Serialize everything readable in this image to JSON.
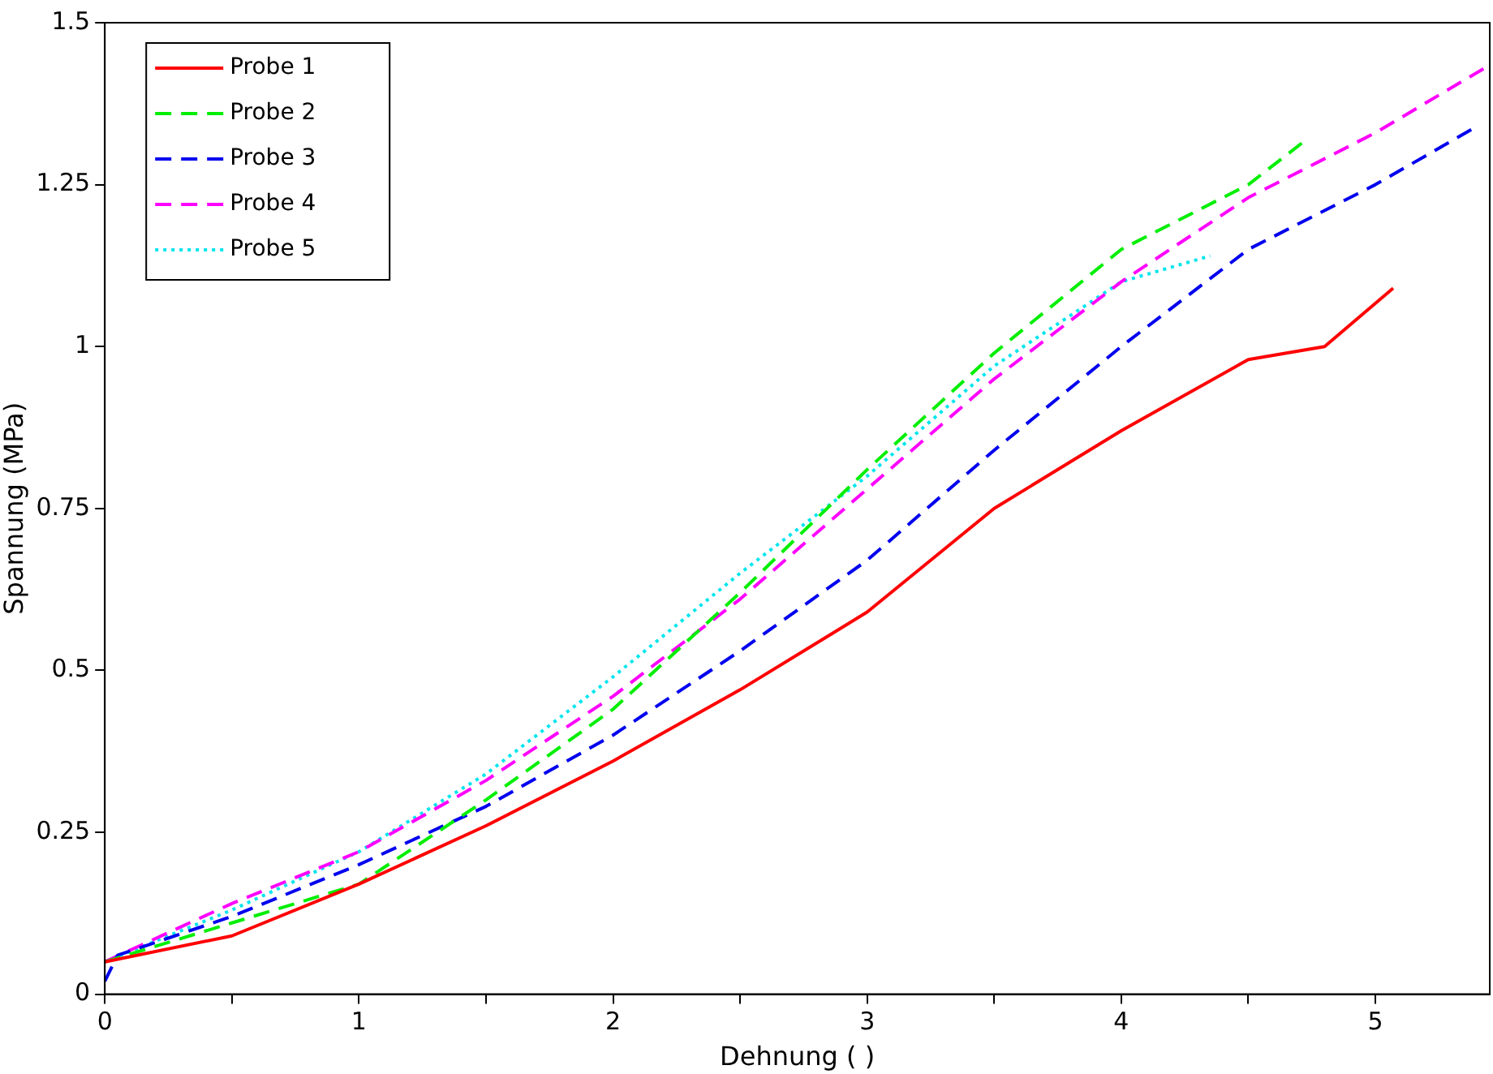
{
  "chart_data": {
    "type": "line",
    "xlabel": "Dehnung ( )",
    "ylabel": "Spannung (MPa)",
    "xlim": [
      0,
      5.45
    ],
    "ylim": [
      0,
      1.5
    ],
    "xticks": [
      0,
      {
        "value": 0.5,
        "label": null
      },
      1,
      {
        "value": 1.5,
        "label": null
      },
      2,
      {
        "value": 2.5,
        "label": null
      },
      3,
      {
        "value": 3.5,
        "label": null
      },
      4,
      {
        "value": 4.5,
        "label": null
      },
      5
    ],
    "yticks": [
      0,
      0.25,
      0.5,
      0.75,
      1,
      1.25,
      1.5
    ],
    "grid": false,
    "legend": "top left",
    "marker": "none",
    "series": [
      {
        "name": "Probe 1",
        "color": "#ff0000",
        "line_style": "solid",
        "x": [
          0,
          0.5,
          1,
          1.5,
          2,
          2.5,
          3,
          3.5,
          4,
          4.5,
          4.8,
          5.07
        ],
        "values": [
          0.05,
          0.09,
          0.17,
          0.26,
          0.36,
          0.47,
          0.59,
          0.75,
          0.87,
          0.98,
          1.0,
          1.09
        ]
      },
      {
        "name": "Probe 2",
        "color": "#00ee00",
        "line_style": "dashed",
        "x": [
          0,
          0.5,
          1,
          1.5,
          2,
          2.5,
          3,
          3.5,
          4,
          4.5,
          4.73
        ],
        "values": [
          0.05,
          0.11,
          0.17,
          0.3,
          0.44,
          0.62,
          0.81,
          0.99,
          1.15,
          1.25,
          1.32
        ]
      },
      {
        "name": "Probe 3",
        "color": "#0000ee",
        "line_style": "dashed",
        "x": [
          0,
          0.05,
          0.5,
          1,
          1.5,
          2,
          2.5,
          3,
          3.5,
          4,
          4.5,
          5,
          5.4
        ],
        "values": [
          0.02,
          0.06,
          0.12,
          0.2,
          0.29,
          0.4,
          0.53,
          0.67,
          0.84,
          1.0,
          1.15,
          1.25,
          1.34
        ]
      },
      {
        "name": "Probe 4",
        "color": "#ff00ff",
        "line_style": "dashed",
        "x": [
          0,
          0.5,
          1,
          1.5,
          2,
          2.5,
          3,
          3.5,
          4,
          4.5,
          5,
          5.43
        ],
        "values": [
          0.05,
          0.14,
          0.22,
          0.33,
          0.46,
          0.61,
          0.78,
          0.95,
          1.1,
          1.23,
          1.33,
          1.43
        ]
      },
      {
        "name": "Probe 5",
        "color": "#00e5ee",
        "line_style": "dotted",
        "x": [
          0,
          0.5,
          1,
          1.5,
          2,
          2.5,
          3,
          3.5,
          4,
          4.35
        ],
        "values": [
          0.05,
          0.13,
          0.22,
          0.34,
          0.49,
          0.65,
          0.8,
          0.97,
          1.1,
          1.14
        ]
      }
    ]
  }
}
